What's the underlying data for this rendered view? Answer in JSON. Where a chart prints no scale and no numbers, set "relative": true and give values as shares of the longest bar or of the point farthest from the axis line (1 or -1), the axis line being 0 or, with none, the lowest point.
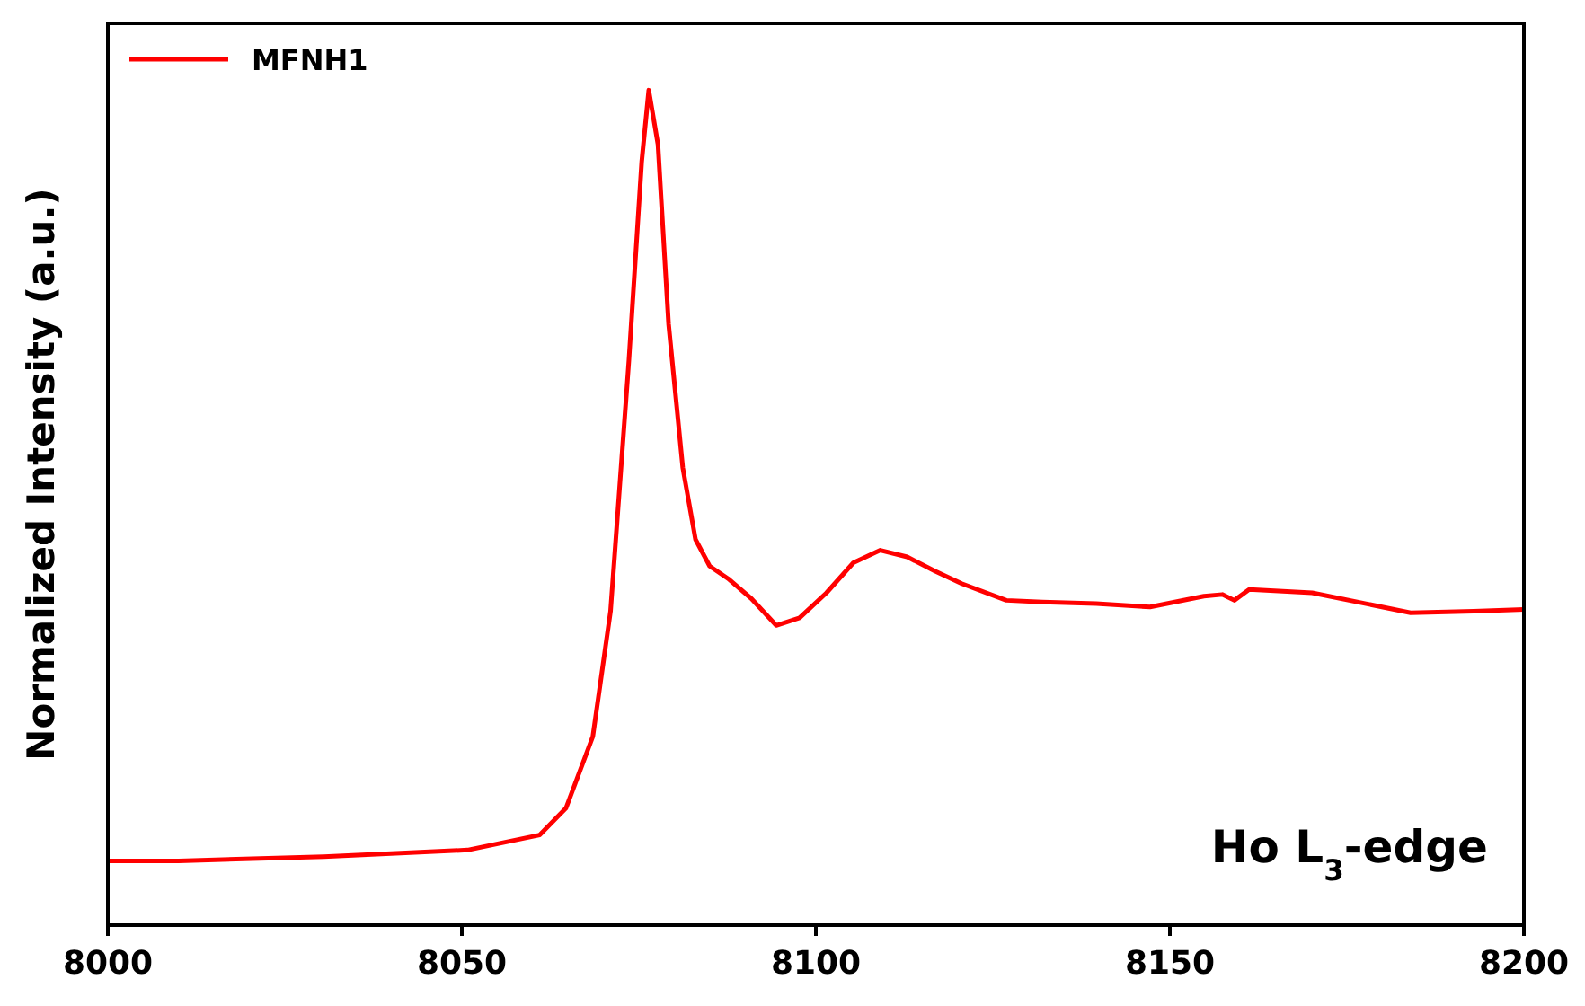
{
  "chart_data": {
    "type": "line",
    "ylabel": "Normalized Intensity (a.u.)",
    "relative": true,
    "xlim": [
      8000,
      8200
    ],
    "xticks": [
      8000,
      8050,
      8100,
      8150,
      8200
    ],
    "legend": "top left",
    "grid": false,
    "annotations": [
      "Ho L$_{3}$-edge"
    ],
    "series": [
      {
        "name": "MFNH1",
        "color": "#ff0000",
        "x": [
          8000,
          8010,
          8030.5,
          8050.8,
          8061,
          8064.7,
          8068.5,
          8071,
          8073.6,
          8075.4,
          8076.4,
          8077.7,
          8079.2,
          8081.2,
          8083,
          8085,
          8087.6,
          8090.9,
          8094.4,
          8097.7,
          8101.5,
          8105.3,
          8109.1,
          8112.9,
          8116.8,
          8120.6,
          8126.9,
          8132,
          8139.6,
          8147.2,
          8154.8,
          8157.4,
          8159.1,
          8161.2,
          8170.1,
          8177.7,
          8184,
          8192.9,
          8200
        ],
        "values": [
          0.077,
          0.077,
          0.082,
          0.09,
          0.108,
          0.14,
          0.226,
          0.376,
          0.677,
          0.914,
          1,
          0.935,
          0.72,
          0.548,
          0.462,
          0.43,
          0.415,
          0.391,
          0.359,
          0.368,
          0.398,
          0.434,
          0.449,
          0.441,
          0.424,
          0.409,
          0.389,
          0.387,
          0.385,
          0.381,
          0.394,
          0.396,
          0.389,
          0.402,
          0.398,
          0.385,
          0.374,
          0.376,
          0.378
        ]
      }
    ]
  }
}
